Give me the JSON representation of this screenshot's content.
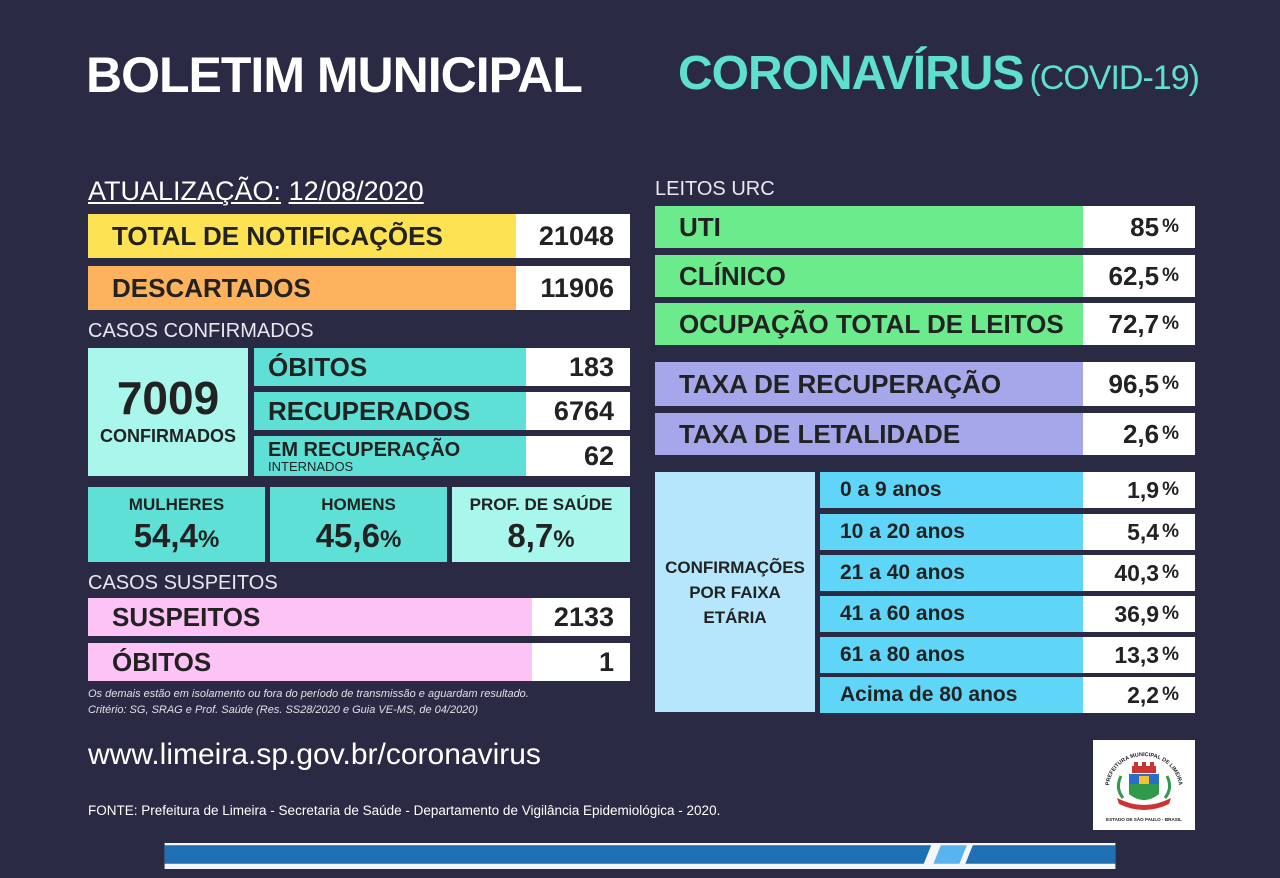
{
  "header": {
    "title": "BOLETIM MUNICIPAL",
    "subtitle_main": "CORONAVÍRUS",
    "subtitle_paren": "(COVID-19)"
  },
  "update": {
    "label": "ATUALIZAÇÃO:",
    "date": "12/08/2020"
  },
  "notifications": {
    "label": "TOTAL DE NOTIFICAÇÕES",
    "value": "21048"
  },
  "discarded": {
    "label": "DESCARTADOS",
    "value": "11906"
  },
  "confirmed": {
    "section": "CASOS CONFIRMADOS",
    "total": "7009",
    "total_label": "CONFIRMADOS",
    "deaths_label": "ÓBITOS",
    "deaths": "183",
    "recovered_label": "RECUPERADOS",
    "recovered": "6764",
    "recovering_label": "EM RECUPERAÇÃO",
    "recovering_sub": "INTERNADOS",
    "recovering": "62"
  },
  "demographics": [
    {
      "label": "MULHERES",
      "value": "54,4",
      "unit": "%"
    },
    {
      "label": "HOMENS",
      "value": "45,6",
      "unit": "%"
    },
    {
      "label": "PROF. DE SAÚDE",
      "value": "8,7",
      "unit": "%"
    }
  ],
  "suspects": {
    "section": "CASOS SUSPEITOS",
    "suspects_label": "SUSPEITOS",
    "suspects": "2133",
    "deaths_label": "ÓBITOS",
    "deaths": "1"
  },
  "notes": {
    "line1": "Os demais estão em isolamento ou fora do período de transmissão e aguardam resultado.",
    "line2": "Critério: SG, SRAG e Prof. Saúde (Res. SS28/2020 e Guia VE-MS, de 04/2020)"
  },
  "beds": {
    "section": "LEITOS URC",
    "rows": [
      {
        "label": "UTI",
        "value": "85",
        "unit": "%"
      },
      {
        "label": "CLÍNICO",
        "value": "62,5",
        "unit": "%"
      },
      {
        "label": "OCUPAÇÃO TOTAL DE LEITOS",
        "value": "72,7",
        "unit": "%"
      }
    ]
  },
  "rates": [
    {
      "label": "TAXA DE RECUPERAÇÃO",
      "value": "96,5",
      "unit": "%"
    },
    {
      "label": "TAXA DE LETALIDADE",
      "value": "2,6",
      "unit": "%"
    }
  ],
  "age": {
    "title_l1": "CONFIRMAÇÕES",
    "title_l2": "POR FAIXA",
    "title_l3": "ETÁRIA",
    "rows": [
      {
        "label": "0 a 9 anos",
        "value": "1,9",
        "unit": "%"
      },
      {
        "label": "10 a 20 anos",
        "value": "5,4",
        "unit": "%"
      },
      {
        "label": "21 a 40 anos",
        "value": "40,3",
        "unit": "%"
      },
      {
        "label": "41 a 60 anos",
        "value": "36,9",
        "unit": "%"
      },
      {
        "label": "61 a 80 anos",
        "value": "13,3",
        "unit": "%"
      },
      {
        "label": "Acima de 80 anos",
        "value": "2,2",
        "unit": "%"
      }
    ]
  },
  "footer": {
    "url": "www.limeira.sp.gov.br/coronavirus",
    "source": "FONTE: Prefeitura de Limeira - Secretaria de Saúde - Departamento de Vigilância Epidemiológica - 2020.",
    "logo_top": "PREFEITURA MUNICIPAL DE LIMEIRA",
    "logo_bottom": "ESTADO DE SÃO PAULO - BRASIL"
  },
  "colors": {
    "background": "#2b2a44",
    "yellow": "#fde253",
    "orange": "#fdb25d",
    "teal": "#5fe0d6",
    "light_teal": "#a8f6ec",
    "pink": "#fdc3f6",
    "green": "#6ceb8d",
    "lavender": "#a6a6ea",
    "sky": "#5fd5f8",
    "light_sky": "#b5e6fb"
  }
}
